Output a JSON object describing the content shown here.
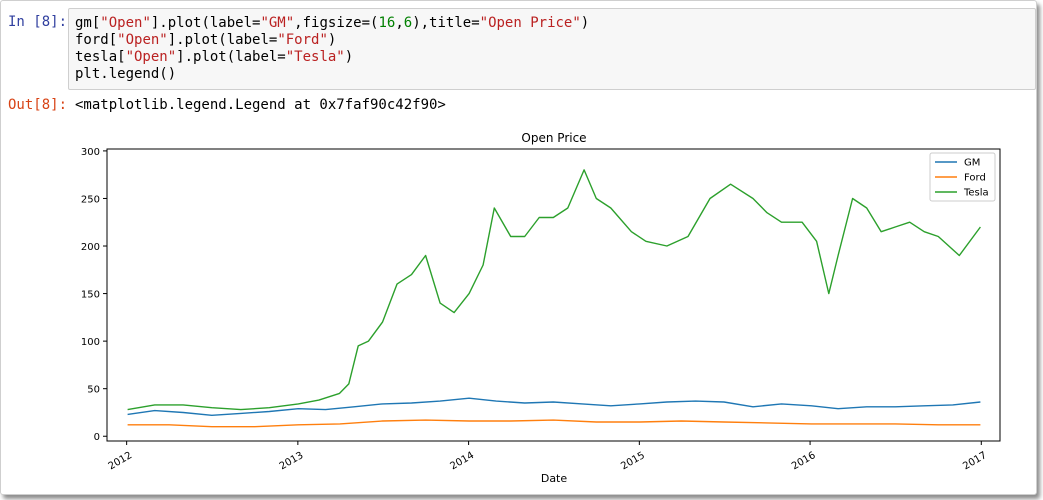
{
  "cell": {
    "in_prompt": "In [8]:",
    "out_prompt": "Out[8]:",
    "code_lines": [
      [
        {
          "t": "gm["
        },
        {
          "t": "\"Open\"",
          "c": "str"
        },
        {
          "t": "].plot(label="
        },
        {
          "t": "\"GM\"",
          "c": "str"
        },
        {
          "t": ",figsize=("
        },
        {
          "t": "16",
          "c": "num"
        },
        {
          "t": ","
        },
        {
          "t": "6",
          "c": "num"
        },
        {
          "t": "),title="
        },
        {
          "t": "\"Open Price\"",
          "c": "str"
        },
        {
          "t": ")"
        }
      ],
      [
        {
          "t": "ford["
        },
        {
          "t": "\"Open\"",
          "c": "str"
        },
        {
          "t": "].plot(label="
        },
        {
          "t": "\"Ford\"",
          "c": "str"
        },
        {
          "t": ")"
        }
      ],
      [
        {
          "t": "tesla["
        },
        {
          "t": "\"Open\"",
          "c": "str"
        },
        {
          "t": "].plot(label="
        },
        {
          "t": "\"Tesla\"",
          "c": "str"
        },
        {
          "t": ")"
        }
      ],
      [
        {
          "t": "plt.legend()"
        }
      ]
    ],
    "output_text": "<matplotlib.legend.Legend at 0x7faf90c42f90>"
  },
  "chart_data": {
    "type": "line",
    "title": "Open Price",
    "xlabel": "Date",
    "ylabel": "",
    "xlim": [
      "2011-11-20",
      "2017-02-10"
    ],
    "ylim": [
      -5,
      302
    ],
    "x_ticks": [
      "2012",
      "2013",
      "2014",
      "2015",
      "2016",
      "2017"
    ],
    "y_ticks": [
      "0",
      "50",
      "100",
      "150",
      "200",
      "250",
      "300"
    ],
    "grid": false,
    "legend_position": "top-right",
    "series": [
      {
        "name": "GM",
        "color": "#1f77b4",
        "x": [
          "2012-01-03",
          "2012-03-01",
          "2012-05-01",
          "2012-07-01",
          "2012-09-01",
          "2012-11-01",
          "2013-01-02",
          "2013-03-01",
          "2013-05-01",
          "2013-07-01",
          "2013-09-01",
          "2013-11-01",
          "2014-01-02",
          "2014-03-01",
          "2014-05-01",
          "2014-07-01",
          "2014-09-01",
          "2014-11-01",
          "2015-01-02",
          "2015-03-01",
          "2015-05-01",
          "2015-07-01",
          "2015-09-01",
          "2015-11-01",
          "2016-01-04",
          "2016-03-01",
          "2016-05-01",
          "2016-07-01",
          "2016-09-01",
          "2016-11-01",
          "2016-12-30"
        ],
        "values": [
          23,
          27,
          25,
          22,
          24,
          26,
          29,
          28,
          31,
          34,
          35,
          37,
          40,
          37,
          35,
          36,
          34,
          32,
          34,
          36,
          37,
          36,
          31,
          34,
          32,
          29,
          31,
          31,
          32,
          33,
          36
        ]
      },
      {
        "name": "Ford",
        "color": "#ff7f0e",
        "x": [
          "2012-01-03",
          "2012-04-01",
          "2012-07-01",
          "2012-10-01",
          "2013-01-02",
          "2013-04-01",
          "2013-07-01",
          "2013-10-01",
          "2014-01-02",
          "2014-04-01",
          "2014-07-01",
          "2014-10-01",
          "2015-01-02",
          "2015-04-01",
          "2015-07-01",
          "2015-10-01",
          "2016-01-04",
          "2016-04-01",
          "2016-07-01",
          "2016-10-01",
          "2016-12-30"
        ],
        "values": [
          12,
          12,
          10,
          10,
          12,
          13,
          16,
          17,
          16,
          16,
          17,
          15,
          15,
          16,
          15,
          14,
          13,
          13,
          13,
          12,
          12
        ]
      },
      {
        "name": "Tesla",
        "color": "#2ca02c",
        "x": [
          "2012-01-03",
          "2012-03-01",
          "2012-05-01",
          "2012-07-01",
          "2012-09-01",
          "2012-11-01",
          "2013-01-02",
          "2013-02-15",
          "2013-03-31",
          "2013-04-20",
          "2013-05-10",
          "2013-06-01",
          "2013-07-01",
          "2013-08-01",
          "2013-09-01",
          "2013-10-01",
          "2013-11-01",
          "2013-12-01",
          "2014-01-02",
          "2014-02-01",
          "2014-02-25",
          "2014-04-01",
          "2014-05-01",
          "2014-06-01",
          "2014-07-01",
          "2014-08-01",
          "2014-09-05",
          "2014-10-01",
          "2014-11-01",
          "2014-12-15",
          "2015-01-15",
          "2015-03-01",
          "2015-04-15",
          "2015-06-01",
          "2015-07-15",
          "2015-09-01",
          "2015-10-01",
          "2015-11-01",
          "2015-12-15",
          "2016-01-15",
          "2016-02-10",
          "2016-03-01",
          "2016-04-01",
          "2016-05-01",
          "2016-06-01",
          "2016-07-01",
          "2016-08-01",
          "2016-09-01",
          "2016-10-01",
          "2016-11-15",
          "2016-12-30"
        ],
        "values": [
          28,
          33,
          33,
          30,
          28,
          30,
          34,
          38,
          45,
          55,
          95,
          100,
          120,
          160,
          170,
          190,
          140,
          130,
          150,
          180,
          240,
          210,
          210,
          230,
          230,
          240,
          280,
          250,
          240,
          215,
          205,
          200,
          210,
          250,
          265,
          250,
          235,
          225,
          225,
          205,
          150,
          190,
          250,
          240,
          215,
          220,
          225,
          215,
          210,
          190,
          220
        ]
      }
    ]
  }
}
